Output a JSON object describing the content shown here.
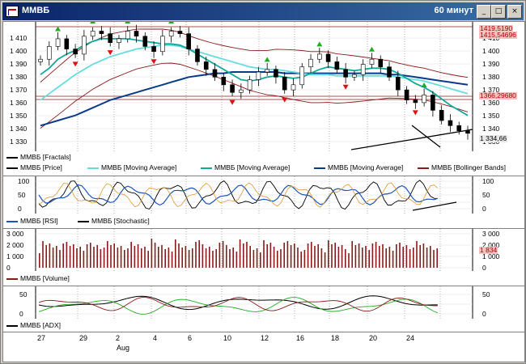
{
  "window": {
    "title": "ММВБ",
    "timeframe": "60 минут",
    "buttons": [
      "_",
      "□",
      "×"
    ]
  },
  "price_panel": {
    "y_labels_left": [
      "1 410",
      "1 400",
      "1 390",
      "1 380",
      "1 370",
      "1 360",
      "1 350",
      "1 340",
      "1 330"
    ],
    "y_labels_right": [
      "1 410",
      "1 400",
      "1 390",
      "1 380",
      "1 370",
      "1 360",
      "1 350",
      "1 340",
      "1 330"
    ],
    "price_tags": [
      "1419,5190",
      "1415,54696",
      "1366,29680",
      "1 334,66"
    ],
    "legend": [
      {
        "label": "ММВБ [Fractals]",
        "color": "#000000"
      },
      {
        "label": "ММВБ [Price]",
        "color": "#000000"
      },
      {
        "label": "ММВБ [Moving Average]",
        "color": "#66dddd"
      },
      {
        "label": "ММВБ [Moving Average]",
        "color": "#11aa99"
      },
      {
        "label": "ММВБ [Moving Average]",
        "color": "#0a3a8a"
      },
      {
        "label": "ММВБ [Bollinger Bands]",
        "color": "#8b1a1a"
      }
    ]
  },
  "rsi_panel": {
    "y_labels_left": [
      "100",
      "50",
      "0"
    ],
    "y_labels_right": [
      "100",
      "50",
      "0"
    ],
    "legend": [
      {
        "label": "ММВБ [RSI]",
        "color": "#1a55bb"
      },
      {
        "label": "ММВБ [Stochastic]",
        "color": "#000000"
      }
    ]
  },
  "volume_panel": {
    "y_labels_left": [
      "3 000",
      "2 000",
      "1 000",
      "0"
    ],
    "y_labels_right": [
      "3 000",
      "2 000",
      "1 000",
      "0"
    ],
    "last_value": "1 834",
    "legend": [
      {
        "label": "ММВБ [Volume]",
        "color": "#8b1a1a"
      }
    ]
  },
  "adx_panel": {
    "y_labels_left": [
      "50",
      "0"
    ],
    "y_labels_right": [
      "50",
      "0"
    ],
    "legend": [
      {
        "label": "ММВБ [ADX]",
        "color": "#000000"
      }
    ]
  },
  "x_axis": {
    "days": [
      "27",
      "29",
      "2",
      "4",
      "6",
      "10",
      "12",
      "16",
      "18",
      "20",
      "24"
    ],
    "month": "Aug"
  },
  "chart_data": {
    "type": "line",
    "title": "ММВБ",
    "ylim": [
      1325,
      1420
    ],
    "series": [
      {
        "name": "ММВБ [Price]",
        "values": [
          1392,
          1402,
          1408,
          1400,
          1396,
          1410,
          1414,
          1412,
          1405,
          1408,
          1414,
          1410,
          1402,
          1398,
          1410,
          1414,
          1412,
          1400,
          1390,
          1384,
          1378,
          1372,
          1366,
          1368,
          1376,
          1382,
          1384,
          1378,
          1368,
          1372,
          1386,
          1392,
          1396,
          1390,
          1384,
          1378,
          1380,
          1388,
          1392,
          1386,
          1378,
          1368,
          1360,
          1358,
          1364,
          1352,
          1344,
          1340,
          1336,
          1334
        ]
      },
      {
        "name": "ММВБ [Moving Average]",
        "values": [
          1360,
          1365,
          1370,
          1375,
          1380,
          1384,
          1388,
          1391,
          1394,
          1396,
          1398,
          1400,
          1401,
          1402,
          1403,
          1403,
          1402,
          1400,
          1398,
          1396,
          1394,
          1392,
          1390,
          1388,
          1386,
          1385,
          1384,
          1384,
          1383,
          1382,
          1381,
          1380,
          1380,
          1380,
          1379,
          1379,
          1379,
          1379,
          1379,
          1379,
          1379,
          1378,
          1377,
          1376,
          1375,
          1373,
          1371,
          1369,
          1367,
          1365
        ]
      },
      {
        "name": "ММВБ [Moving Average]",
        "values": [
          1380,
          1385,
          1392,
          1396,
          1399,
          1403,
          1406,
          1408,
          1408,
          1408,
          1408,
          1407,
          1406,
          1405,
          1404,
          1404,
          1403,
          1400,
          1396,
          1392,
          1388,
          1384,
          1380,
          1376,
          1375,
          1376,
          1378,
          1379,
          1378,
          1377,
          1378,
          1381,
          1384,
          1386,
          1385,
          1384,
          1383,
          1384,
          1385,
          1385,
          1384,
          1381,
          1377,
          1373,
          1370,
          1366,
          1361,
          1356,
          1352,
          1348
        ]
      },
      {
        "name": "ММВБ [Moving Average]",
        "values": [
          1340,
          1342,
          1344,
          1346,
          1348,
          1351,
          1354,
          1357,
          1360,
          1362,
          1364,
          1366,
          1368,
          1370,
          1372,
          1374,
          1376,
          1378,
          1379,
          1380,
          1381,
          1381,
          1382,
          1382,
          1382,
          1382,
          1382,
          1382,
          1381,
          1381,
          1381,
          1381,
          1381,
          1381,
          1381,
          1381,
          1381,
          1381,
          1381,
          1381,
          1380,
          1380,
          1379,
          1378,
          1377,
          1376,
          1375,
          1374,
          1373,
          1372
        ]
      }
    ]
  }
}
